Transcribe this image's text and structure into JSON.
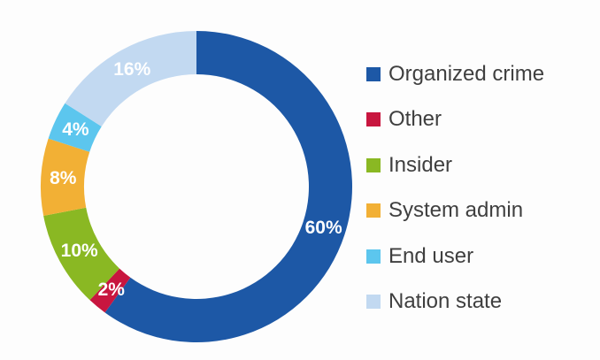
{
  "chart_data": {
    "type": "pie",
    "subtype": "donut",
    "title": "",
    "categories": [
      "Organized crime",
      "Other",
      "Insider",
      "System admin",
      "End user",
      "Nation state"
    ],
    "values": [
      60,
      2,
      10,
      8,
      4,
      16
    ],
    "labels": [
      "60%",
      "2%",
      "10%",
      "8%",
      "4%",
      "16%"
    ],
    "colors": [
      "#1d58a6",
      "#c8163f",
      "#8ab823",
      "#f2b035",
      "#5cc6ee",
      "#c2d9f1"
    ],
    "legend_position": "right"
  }
}
